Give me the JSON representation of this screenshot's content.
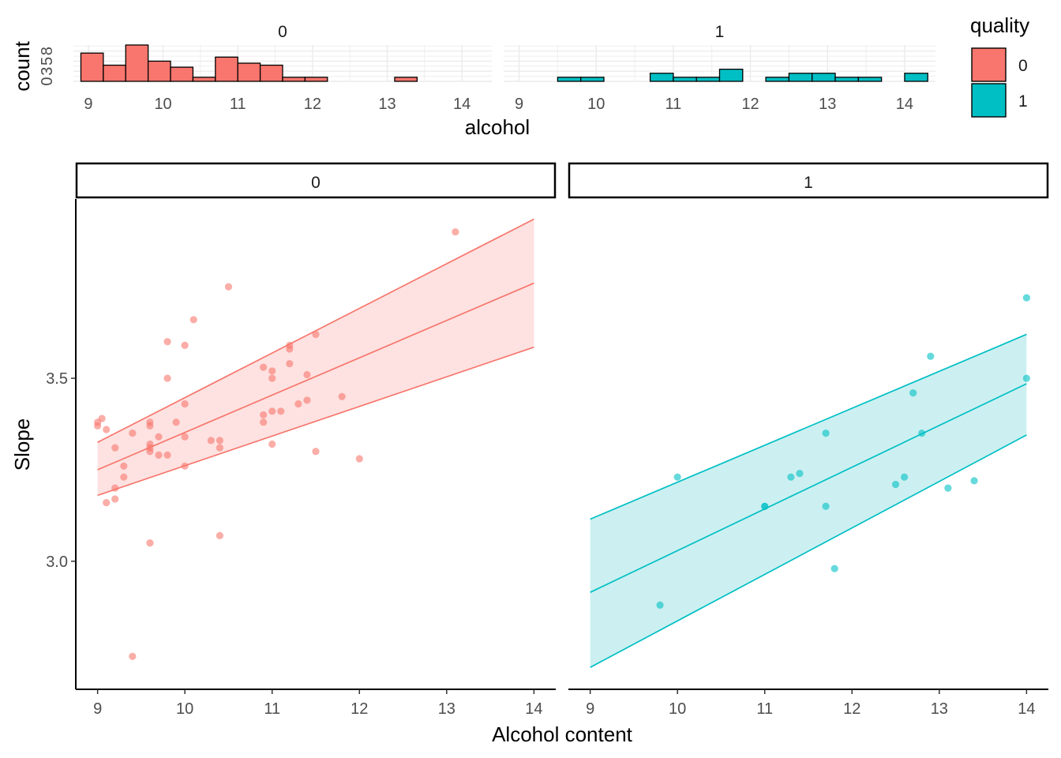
{
  "chart_data": [
    {
      "type": "bar",
      "subtype": "histogram",
      "facet_by": "quality",
      "xlabel": "alcohol",
      "ylabel": "count",
      "y_ticks": [
        "0",
        "3",
        "5",
        "8"
      ],
      "xlim": [
        8.8,
        14.4
      ],
      "ylim": [
        0,
        9
      ],
      "x_ticks": [
        9,
        10,
        11,
        12,
        13,
        14
      ],
      "bin_width": 0.3,
      "legend": {
        "title": "quality",
        "position": "top-right",
        "entries": [
          {
            "label": "0",
            "color": "#F8766D"
          },
          {
            "label": "1",
            "color": "#00BFC4"
          }
        ]
      },
      "panels": [
        {
          "label": "0",
          "bins": [
            {
              "x0": 8.9,
              "count": 7
            },
            {
              "x0": 9.2,
              "count": 4
            },
            {
              "x0": 9.5,
              "count": 9
            },
            {
              "x0": 9.8,
              "count": 5
            },
            {
              "x0": 10.1,
              "count": 3.5
            },
            {
              "x0": 10.4,
              "count": 1
            },
            {
              "x0": 10.7,
              "count": 6
            },
            {
              "x0": 11.0,
              "count": 4.5
            },
            {
              "x0": 11.3,
              "count": 4
            },
            {
              "x0": 11.6,
              "count": 1
            },
            {
              "x0": 11.9,
              "count": 1
            },
            {
              "x0": 12.2,
              "count": 0
            },
            {
              "x0": 12.5,
              "count": 0
            },
            {
              "x0": 12.8,
              "count": 0
            },
            {
              "x0": 13.1,
              "count": 1
            },
            {
              "x0": 13.4,
              "count": 0
            },
            {
              "x0": 13.7,
              "count": 0
            },
            {
              "x0": 14.0,
              "count": 0
            }
          ]
        },
        {
          "label": "1",
          "bins": [
            {
              "x0": 8.9,
              "count": 0
            },
            {
              "x0": 9.2,
              "count": 0
            },
            {
              "x0": 9.5,
              "count": 1
            },
            {
              "x0": 9.8,
              "count": 1
            },
            {
              "x0": 10.1,
              "count": 0
            },
            {
              "x0": 10.4,
              "count": 0
            },
            {
              "x0": 10.7,
              "count": 2
            },
            {
              "x0": 11.0,
              "count": 1
            },
            {
              "x0": 11.3,
              "count": 1
            },
            {
              "x0": 11.6,
              "count": 3
            },
            {
              "x0": 11.9,
              "count": 0
            },
            {
              "x0": 12.2,
              "count": 1
            },
            {
              "x0": 12.5,
              "count": 2
            },
            {
              "x0": 12.8,
              "count": 2
            },
            {
              "x0": 13.1,
              "count": 1
            },
            {
              "x0": 13.4,
              "count": 1
            },
            {
              "x0": 13.7,
              "count": 0
            },
            {
              "x0": 14.0,
              "count": 2
            }
          ]
        }
      ]
    },
    {
      "type": "scatter",
      "facet_by": "quality",
      "xlabel": "Alcohol content",
      "ylabel": "Slope",
      "xlim": [
        8.75,
        14.25
      ],
      "ylim": [
        2.65,
        3.99
      ],
      "x_ticks": [
        9,
        10,
        11,
        12,
        13,
        14
      ],
      "y_ticks": [
        3.0,
        3.5
      ],
      "y_tick_labels": [
        "3.0",
        "3.5"
      ],
      "panels": [
        {
          "label": "0",
          "color": "#F8766D",
          "fill": "#FDE2E1",
          "fit": {
            "x_range": [
              9,
              14
            ],
            "mean": [
              3.25,
              3.76
            ],
            "lower": [
              3.18,
              3.585
            ],
            "upper": [
              3.325,
              3.935
            ]
          },
          "points": [
            [
              9.0,
              3.37
            ],
            [
              9.0,
              3.38
            ],
            [
              9.05,
              3.39
            ],
            [
              9.1,
              3.36
            ],
            [
              9.1,
              3.16
            ],
            [
              9.2,
              3.31
            ],
            [
              9.2,
              3.2
            ],
            [
              9.2,
              3.17
            ],
            [
              9.3,
              3.26
            ],
            [
              9.3,
              3.23
            ],
            [
              9.4,
              3.35
            ],
            [
              9.4,
              2.74
            ],
            [
              9.6,
              3.38
            ],
            [
              9.6,
              3.37
            ],
            [
              9.6,
              3.32
            ],
            [
              9.6,
              3.31
            ],
            [
              9.6,
              3.3
            ],
            [
              9.6,
              3.05
            ],
            [
              9.7,
              3.34
            ],
            [
              9.7,
              3.29
            ],
            [
              9.8,
              3.6
            ],
            [
              9.8,
              3.5
            ],
            [
              9.8,
              3.29
            ],
            [
              9.9,
              3.38
            ],
            [
              10.0,
              3.59
            ],
            [
              10.0,
              3.43
            ],
            [
              10.0,
              3.34
            ],
            [
              10.0,
              3.26
            ],
            [
              10.1,
              3.66
            ],
            [
              10.3,
              3.33
            ],
            [
              10.4,
              3.33
            ],
            [
              10.4,
              3.31
            ],
            [
              10.4,
              3.07
            ],
            [
              10.5,
              3.75
            ],
            [
              10.9,
              3.53
            ],
            [
              10.9,
              3.4
            ],
            [
              10.9,
              3.38
            ],
            [
              11.0,
              3.52
            ],
            [
              11.0,
              3.5
            ],
            [
              11.0,
              3.41
            ],
            [
              11.0,
              3.32
            ],
            [
              11.1,
              3.41
            ],
            [
              11.2,
              3.59
            ],
            [
              11.2,
              3.58
            ],
            [
              11.2,
              3.54
            ],
            [
              11.3,
              3.43
            ],
            [
              11.4,
              3.51
            ],
            [
              11.4,
              3.44
            ],
            [
              11.5,
              3.62
            ],
            [
              11.5,
              3.3
            ],
            [
              11.8,
              3.45
            ],
            [
              12.0,
              3.28
            ],
            [
              13.1,
              3.9
            ]
          ]
        },
        {
          "label": "1",
          "color": "#00BFC4",
          "fill": "#CCF0F1",
          "fit": {
            "x_range": [
              9,
              14
            ],
            "mean": [
              2.915,
              3.485
            ],
            "lower": [
              2.71,
              3.345
            ],
            "upper": [
              3.115,
              3.62
            ]
          },
          "points": [
            [
              9.8,
              2.88
            ],
            [
              10.0,
              3.23
            ],
            [
              11.0,
              3.15
            ],
            [
              11.0,
              3.15
            ],
            [
              11.3,
              3.23
            ],
            [
              11.4,
              3.24
            ],
            [
              11.7,
              3.35
            ],
            [
              11.7,
              3.15
            ],
            [
              11.8,
              2.98
            ],
            [
              12.5,
              3.21
            ],
            [
              12.6,
              3.23
            ],
            [
              12.7,
              3.46
            ],
            [
              12.8,
              3.35
            ],
            [
              12.9,
              3.56
            ],
            [
              13.1,
              3.2
            ],
            [
              13.4,
              3.22
            ],
            [
              14.0,
              3.72
            ],
            [
              14.0,
              3.5
            ]
          ]
        }
      ]
    }
  ]
}
